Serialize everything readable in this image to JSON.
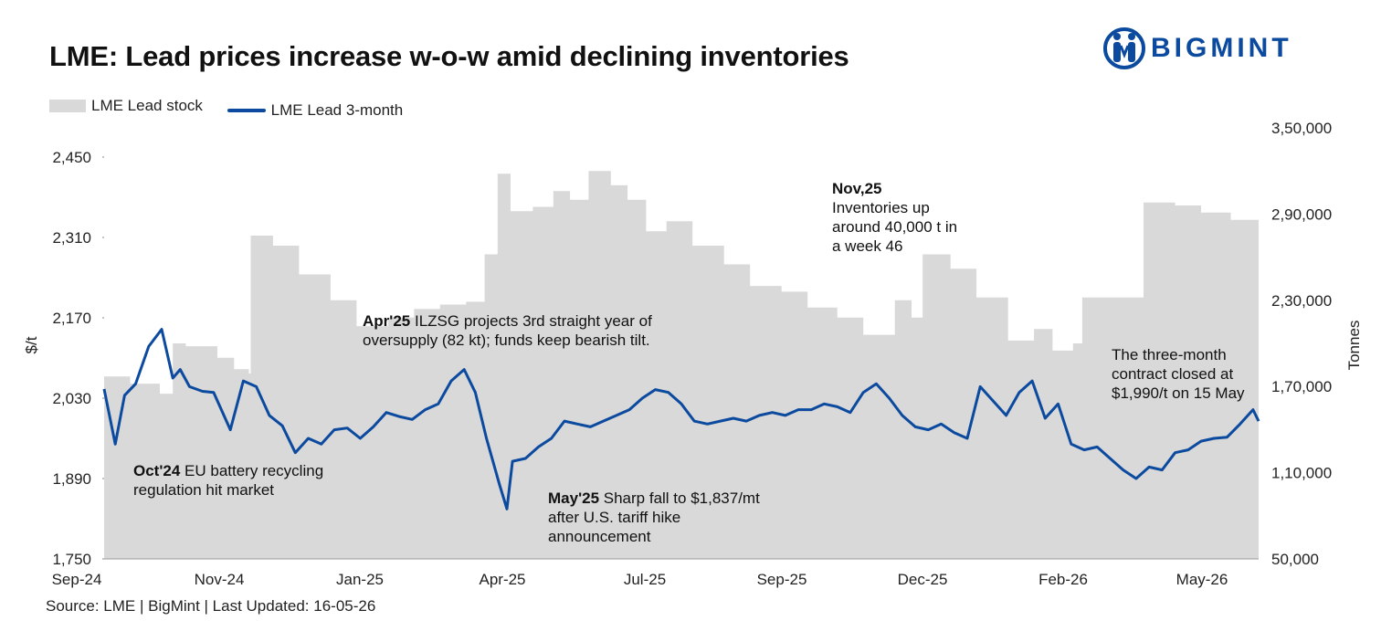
{
  "title": "LME: Lead prices increase w-o-w amid declining inventories",
  "logo": {
    "text": "BIGMINT",
    "icon": "bigmint-logo-icon",
    "color": "#0b4a9e"
  },
  "footer": "Source: LME | BigMint | Last Updated: 16-05-26",
  "chart_data": {
    "type": "line",
    "title": "LME: Lead prices increase w-o-w amid declining inventories",
    "legend_placement": "top-left",
    "grid": false,
    "x_ticks": [
      "Sep-24",
      "Nov-24",
      "Jan-25",
      "Apr-25",
      "Jul-25",
      "Sep-25",
      "Dec-25",
      "Feb-26",
      "May-26"
    ],
    "x_range": [
      "2024-09-01",
      "2026-05-16"
    ],
    "y_left": {
      "label": "$/t",
      "range": [
        1750,
        2450
      ],
      "ticks": [
        "1,750",
        "1,890",
        "2,030",
        "2,170",
        "2,310",
        "2,450"
      ]
    },
    "y_right": {
      "label": "Tonnes",
      "range": [
        50000,
        350000
      ],
      "ticks": [
        "50,000",
        "1,10,000",
        "1,70,000",
        "2,30,000",
        "2,90,000",
        "3,50,000"
      ]
    },
    "series": [
      {
        "name": "LME Lead stock",
        "kind": "area",
        "axis": "right",
        "color": "#d9d9d9",
        "x": [
          "2024-09-01",
          "2024-09-15",
          "2024-10-01",
          "2024-10-08",
          "2024-10-15",
          "2024-11-01",
          "2024-11-10",
          "2024-11-18",
          "2024-11-19",
          "2024-12-01",
          "2024-12-15",
          "2025-01-01",
          "2025-01-15",
          "2025-02-01",
          "2025-02-15",
          "2025-03-01",
          "2025-03-15",
          "2025-03-25",
          "2025-04-01",
          "2025-04-08",
          "2025-04-20",
          "2025-05-01",
          "2025-05-10",
          "2025-05-20",
          "2025-06-01",
          "2025-06-10",
          "2025-06-20",
          "2025-07-01",
          "2025-07-15",
          "2025-08-01",
          "2025-08-15",
          "2025-09-01",
          "2025-09-15",
          "2025-10-01",
          "2025-10-15",
          "2025-11-01",
          "2025-11-10",
          "2025-11-16",
          "2025-12-01",
          "2025-12-15",
          "2026-01-01",
          "2026-01-15",
          "2026-01-25",
          "2026-02-05",
          "2026-02-10",
          "2026-02-25",
          "2026-03-15",
          "2026-04-01",
          "2026-04-15",
          "2026-05-01",
          "2026-05-16"
        ],
        "y": [
          177000,
          172000,
          165000,
          200000,
          198000,
          190000,
          182000,
          179000,
          275000,
          268000,
          248000,
          230000,
          212000,
          218000,
          224000,
          227000,
          229000,
          262000,
          318000,
          292000,
          295000,
          306000,
          300000,
          320000,
          310000,
          300000,
          278000,
          285000,
          268000,
          255000,
          240000,
          236000,
          225000,
          218000,
          206000,
          230000,
          218000,
          262000,
          252000,
          232000,
          202000,
          210000,
          195000,
          200000,
          232000,
          232000,
          298000,
          296000,
          291000,
          286000,
          282000
        ]
      },
      {
        "name": "LME Lead 3-month",
        "kind": "line",
        "axis": "left",
        "color": "#0b4a9e",
        "x": [
          "2024-09-01",
          "2024-09-07",
          "2024-09-12",
          "2024-09-18",
          "2024-09-25",
          "2024-10-02",
          "2024-10-08",
          "2024-10-12",
          "2024-10-17",
          "2024-10-24",
          "2024-10-30",
          "2024-11-08",
          "2024-11-15",
          "2024-11-22",
          "2024-11-29",
          "2024-12-06",
          "2024-12-13",
          "2024-12-20",
          "2024-12-27",
          "2025-01-03",
          "2025-01-10",
          "2025-01-17",
          "2025-01-24",
          "2025-01-31",
          "2025-02-07",
          "2025-02-14",
          "2025-02-21",
          "2025-02-28",
          "2025-03-07",
          "2025-03-14",
          "2025-03-20",
          "2025-03-26",
          "2025-04-02",
          "2025-04-06",
          "2025-04-09",
          "2025-04-16",
          "2025-04-23",
          "2025-04-30",
          "2025-05-07",
          "2025-05-14",
          "2025-05-21",
          "2025-05-28",
          "2025-06-04",
          "2025-06-11",
          "2025-06-18",
          "2025-06-25",
          "2025-07-02",
          "2025-07-09",
          "2025-07-16",
          "2025-07-23",
          "2025-07-30",
          "2025-08-06",
          "2025-08-13",
          "2025-08-20",
          "2025-08-27",
          "2025-09-03",
          "2025-09-10",
          "2025-09-17",
          "2025-09-24",
          "2025-10-01",
          "2025-10-08",
          "2025-10-15",
          "2025-10-22",
          "2025-10-29",
          "2025-11-05",
          "2025-11-12",
          "2025-11-19",
          "2025-11-26",
          "2025-12-03",
          "2025-12-10",
          "2025-12-17",
          "2025-12-24",
          "2025-12-31",
          "2026-01-07",
          "2026-01-14",
          "2026-01-21",
          "2026-01-28",
          "2026-02-04",
          "2026-02-11",
          "2026-02-18",
          "2026-02-25",
          "2026-03-04",
          "2026-03-11",
          "2026-03-18",
          "2026-03-25",
          "2026-04-01",
          "2026-04-08",
          "2026-04-15",
          "2026-04-22",
          "2026-04-29",
          "2026-05-06",
          "2026-05-13",
          "2026-05-16"
        ],
        "y": [
          2046,
          1950,
          2035,
          2055,
          2120,
          2150,
          2065,
          2080,
          2050,
          2042,
          2040,
          1975,
          2060,
          2050,
          2000,
          1982,
          1935,
          1960,
          1950,
          1975,
          1978,
          1960,
          1980,
          2005,
          1998,
          1993,
          2010,
          2020,
          2060,
          2080,
          2040,
          1960,
          1880,
          1837,
          1920,
          1925,
          1945,
          1960,
          1990,
          1985,
          1980,
          1990,
          2000,
          2010,
          2030,
          2045,
          2040,
          2020,
          1990,
          1985,
          1990,
          1995,
          1990,
          2000,
          2005,
          2000,
          2010,
          2010,
          2020,
          2015,
          2005,
          2040,
          2055,
          2030,
          2000,
          1980,
          1975,
          1985,
          1970,
          1960,
          2050,
          2025,
          2000,
          2040,
          2060,
          1995,
          2020,
          1950,
          1940,
          1945,
          1925,
          1905,
          1890,
          1910,
          1905,
          1935,
          1940,
          1955,
          1960,
          1962,
          1985,
          2010,
          1990
        ]
      }
    ],
    "annotations": [
      {
        "bold": "Oct'24",
        "text": "EU battery recycling regulation hit market"
      },
      {
        "bold": "Apr'25",
        "text": "ILZSG projects 3rd straight year of oversupply (82 kt); funds keep bearish tilt."
      },
      {
        "bold": "May'25",
        "text": "Sharp fall to $1,837/mt after U.S. tariff hike announcement"
      },
      {
        "bold": "Nov,25",
        "text": "Inventories up around 40,000 t in a week 46"
      },
      {
        "bold": "",
        "text": "The three-month contract closed at $1,990/t on 15 May"
      }
    ]
  }
}
